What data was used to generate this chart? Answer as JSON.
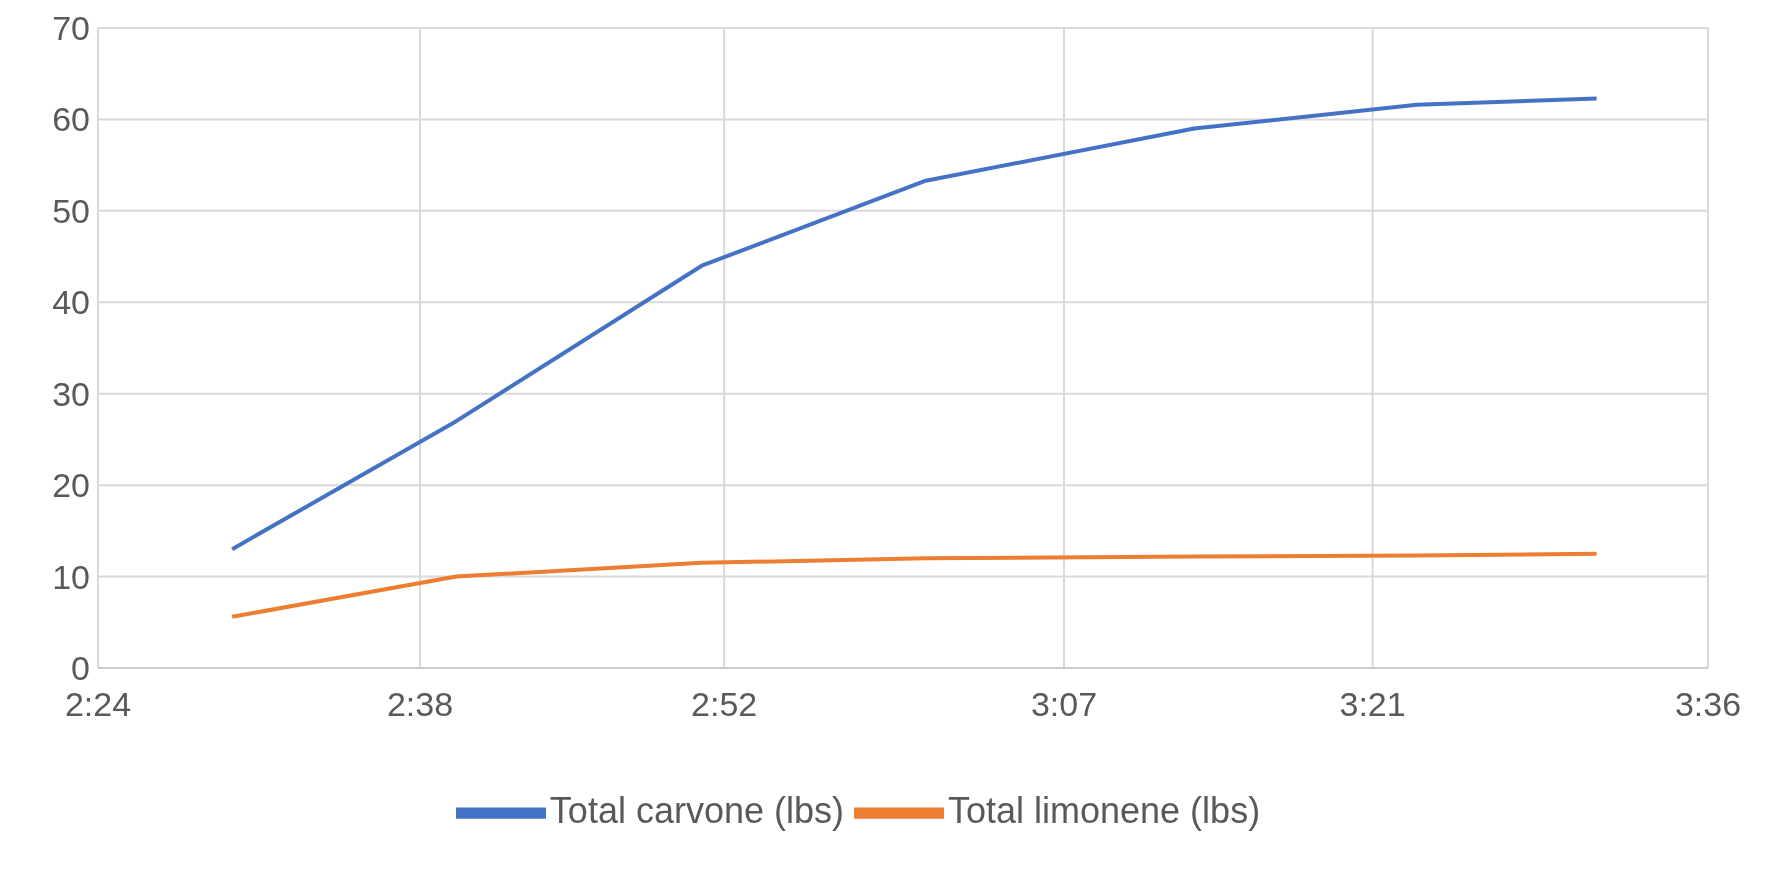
{
  "chart_data": {
    "type": "line",
    "x": [
      2.5,
      2.667,
      2.85,
      3.017,
      3.217,
      3.383,
      3.517
    ],
    "series": [
      {
        "name": "Total carvone (lbs)",
        "color": "#4472c4",
        "values": [
          13,
          27,
          44,
          53.3,
          59,
          61.6,
          62.3
        ]
      },
      {
        "name": "Total limonene (lbs)",
        "color": "#ed7d31",
        "values": [
          5.6,
          10,
          11.5,
          12,
          12.2,
          12.3,
          12.5
        ]
      }
    ],
    "xlim": [
      2.4,
      3.6
    ],
    "xticks": [
      {
        "value": 2.4,
        "label": "2:24"
      },
      {
        "value": 2.64,
        "label": "2:38"
      },
      {
        "value": 2.8667,
        "label": "2:52"
      },
      {
        "value": 3.12,
        "label": "3:07"
      },
      {
        "value": 3.35,
        "label": "3:21"
      },
      {
        "value": 3.6,
        "label": "3:36"
      }
    ],
    "ylim": [
      0,
      70
    ],
    "yticks": [
      0,
      10,
      20,
      30,
      40,
      50,
      60,
      70
    ],
    "grid": true,
    "legend": "bottom",
    "marker": "none",
    "line_style": "solid"
  }
}
